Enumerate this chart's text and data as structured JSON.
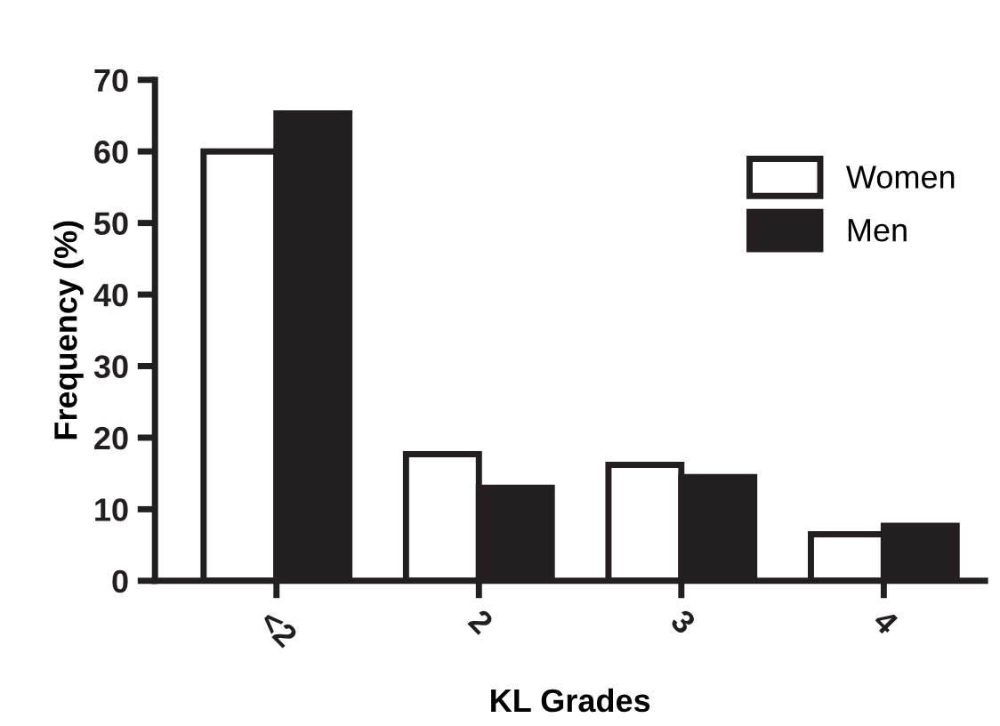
{
  "chart_data": {
    "type": "bar",
    "xlabel": "KL Grades",
    "ylabel": "Frequency (%)",
    "categories": [
      "<2",
      "2",
      "3",
      "4"
    ],
    "series": [
      {
        "name": "Women",
        "color": "#ffffff",
        "values": [
          60,
          17.7,
          16.2,
          6.5
        ]
      },
      {
        "name": "Men",
        "color": "#231f20",
        "values": [
          65.3,
          13.0,
          14.5,
          7.7
        ]
      }
    ],
    "ylim": [
      0,
      70
    ],
    "yticks": [
      0,
      10,
      20,
      30,
      40,
      50,
      60,
      70
    ],
    "grid": false,
    "legend": "top right"
  }
}
